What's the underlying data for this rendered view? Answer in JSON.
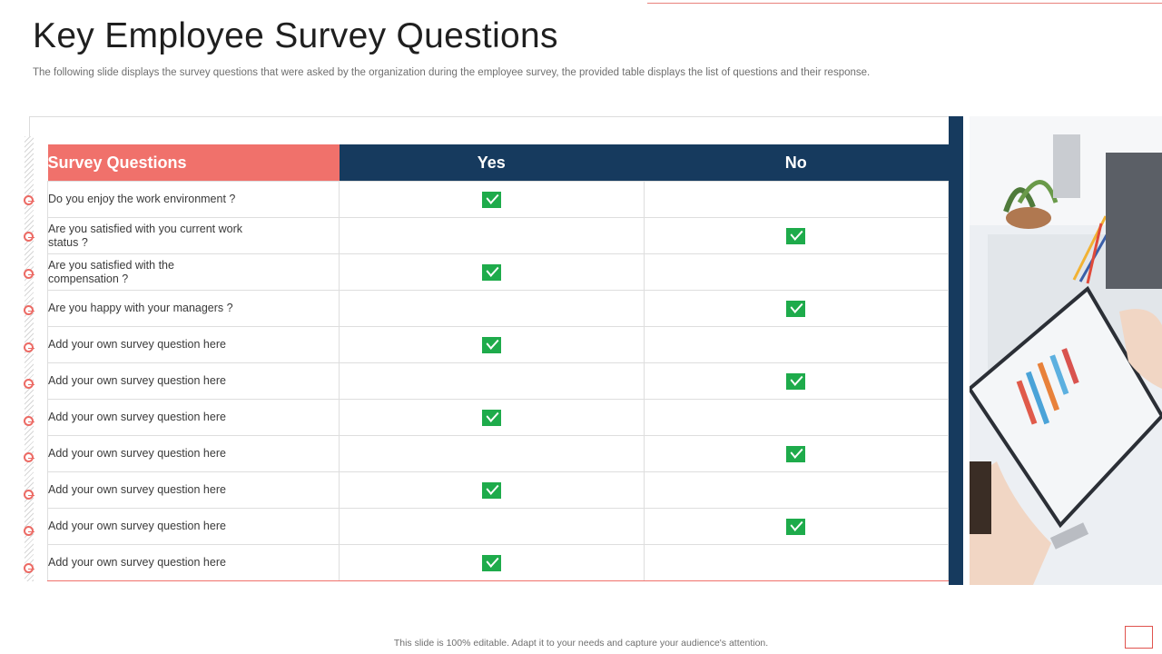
{
  "slide": {
    "title": "Key Employee Survey Questions",
    "subtitle": "The following slide displays the survey questions that were asked by the organization during the employee survey,  the provided table displays the list of questions and their response.",
    "footer": "This slide is 100% editable. Adapt it to your needs and capture your audience's attention."
  },
  "table": {
    "headers": {
      "question": "Survey Questions",
      "yes": "Yes",
      "no": "No"
    },
    "rows": [
      {
        "question": "Do you enjoy the work environment  ?",
        "answer": "yes"
      },
      {
        "question": "Are you satisfied with you current work status ?",
        "answer": "no"
      },
      {
        "question": "Are you satisfied with the compensation  ?",
        "answer": "yes"
      },
      {
        "question": "Are you happy with your managers  ?",
        "answer": "no"
      },
      {
        "question": "Add your own survey question here",
        "answer": "yes"
      },
      {
        "question": "Add your own survey question here",
        "answer": "no"
      },
      {
        "question": "Add your own survey question here",
        "answer": "yes"
      },
      {
        "question": "Add your own survey question here",
        "answer": "no"
      },
      {
        "question": "Add your own survey question here",
        "answer": "yes"
      },
      {
        "question": "Add your own survey question here",
        "answer": "no"
      },
      {
        "question": "Add your own survey question here",
        "answer": "yes"
      }
    ]
  },
  "colors": {
    "accent": "#f0716b",
    "navy": "#163a5e",
    "check": "#1eab4b"
  },
  "icons": {
    "answer_mark": "check-icon"
  }
}
